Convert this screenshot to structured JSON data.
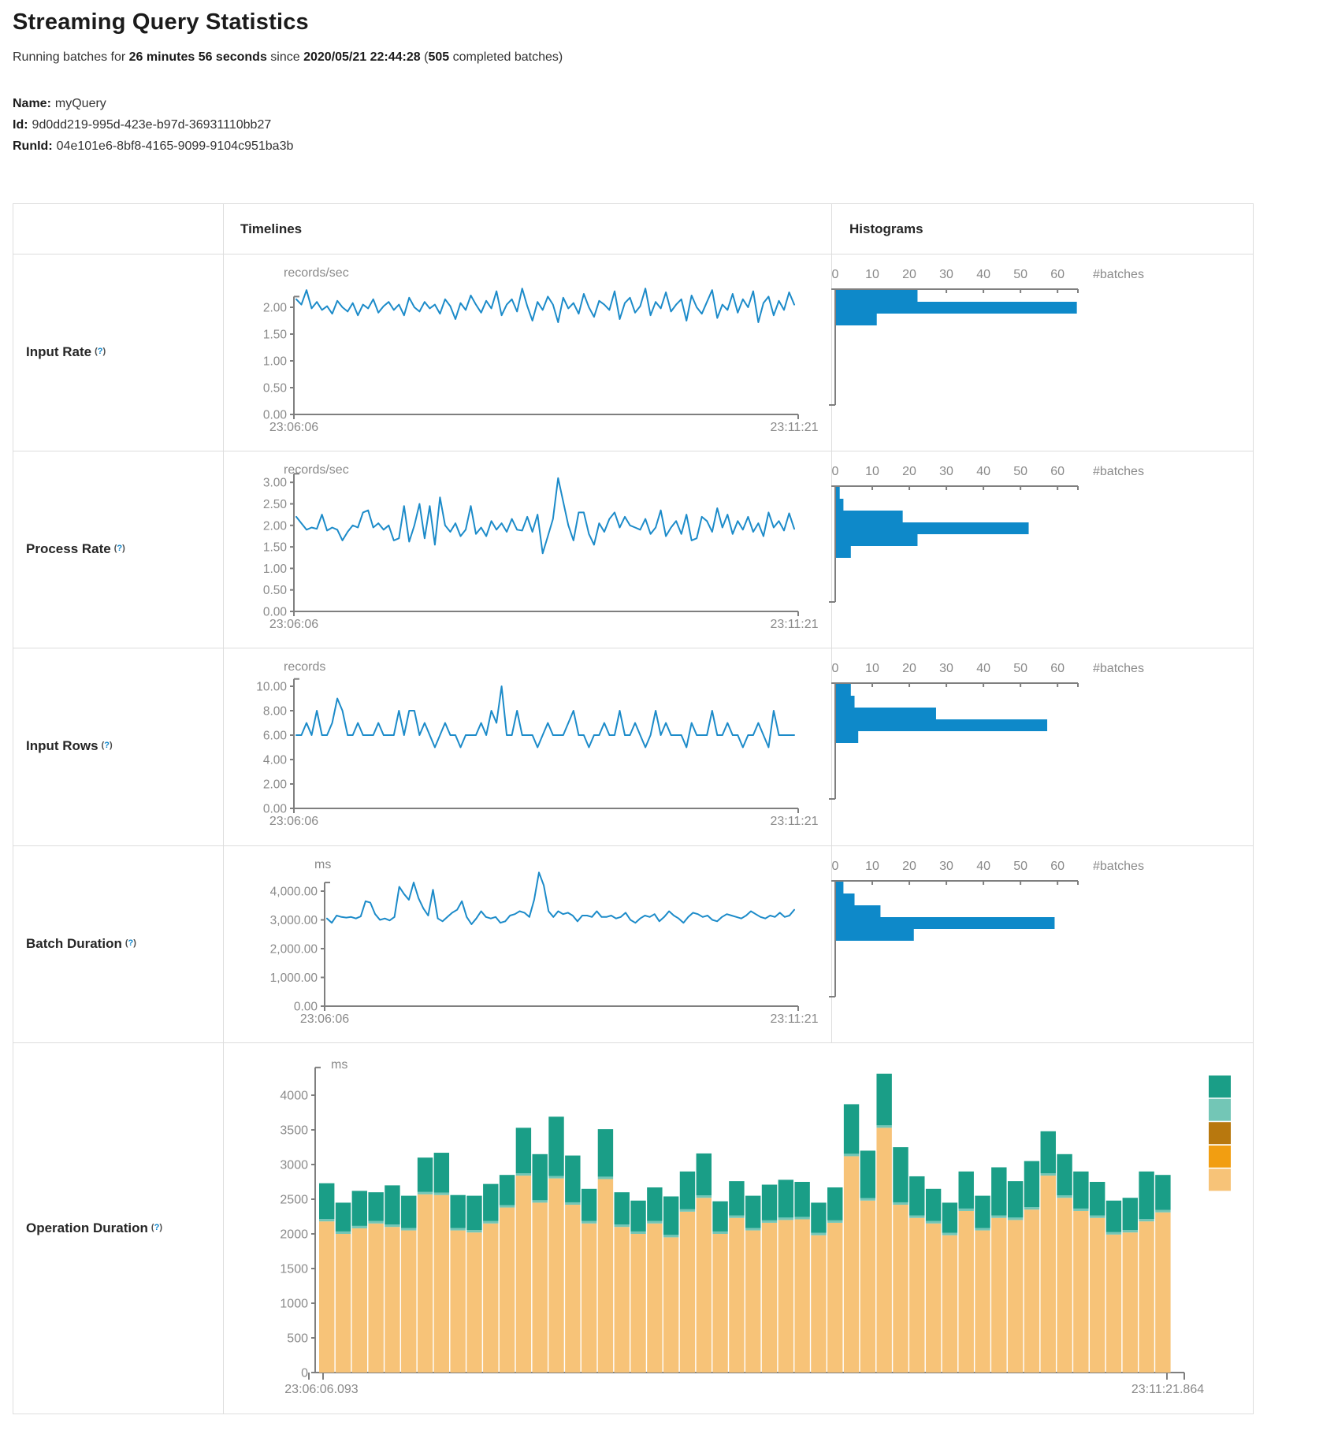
{
  "page": {
    "title": "Streaming Query Statistics",
    "subtitle": {
      "p1": "Running batches for ",
      "b1": "26 minutes 56 seconds",
      "p2": " since ",
      "b2": "2020/05/21 22:44:28",
      "p3": " (",
      "b3": "505",
      "p4": " completed batches)"
    },
    "meta": [
      {
        "label": "Name:",
        "value": "myQuery"
      },
      {
        "label": "Id:",
        "value": "9d0dd219-995d-423e-b97d-36931110bb27"
      },
      {
        "label": "RunId:",
        "value": "04e101e6-8bf8-4165-9099-9104c951ba3b"
      }
    ]
  },
  "table": {
    "headers": {
      "timelines": "Timelines",
      "histograms": "Histograms"
    },
    "help": {
      "open": "(",
      "mark": "?",
      "close": ")"
    },
    "row_labels": [
      {
        "label": "Input Rate"
      },
      {
        "label": "Process Rate"
      },
      {
        "label": "Input Rows"
      },
      {
        "label": "Batch Duration"
      },
      {
        "label": "Operation Duration"
      }
    ]
  },
  "chart_data": {
    "line_color": "#1c8bc9",
    "hist_color": "#0e89c9",
    "axis_color": "#7f7f7f",
    "tick_text_color": "#8a8a8a",
    "rows": [
      {
        "metric": "Input Rate",
        "timeline": {
          "type": "line",
          "unit": "records/sec",
          "x_start": "23:06:06",
          "x_end": "23:11:21",
          "ylim": [
            0,
            2.2
          ],
          "ytick_values": [
            2,
            1.5,
            1,
            0.5,
            0
          ],
          "ytick_labels": [
            "2.00",
            "1.50",
            "1.00",
            "0.50",
            "0.00"
          ],
          "values": [
            2.15,
            2.05,
            2.32,
            1.98,
            2.1,
            1.95,
            2.02,
            1.88,
            2.12,
            2.0,
            1.92,
            2.08,
            1.85,
            2.05,
            1.98,
            2.15,
            1.9,
            2.02,
            2.1,
            1.95,
            2.05,
            1.85,
            2.18,
            2.0,
            1.92,
            2.1,
            1.98,
            2.05,
            1.88,
            2.15,
            2.02,
            1.78,
            2.08,
            1.95,
            2.22,
            2.05,
            1.9,
            2.12,
            1.98,
            2.3,
            1.85,
            2.05,
            2.15,
            1.92,
            2.35,
            2.02,
            1.75,
            2.1,
            1.95,
            2.2,
            2.05,
            1.72,
            2.18,
            1.98,
            2.08,
            1.88,
            2.25,
            2.0,
            1.82,
            2.12,
            2.05,
            1.95,
            2.3,
            1.78,
            2.08,
            2.18,
            1.9,
            2.02,
            2.35,
            1.85,
            2.1,
            1.98,
            2.28,
            1.92,
            2.05,
            2.15,
            1.75,
            2.22,
            2.0,
            1.88,
            2.1,
            2.32,
            1.8,
            2.05,
            1.95,
            2.25,
            1.9,
            2.15,
            2.0,
            2.3,
            1.72,
            2.08,
            2.2,
            1.85,
            2.12,
            1.95,
            2.28,
            2.05
          ]
        },
        "histogram": {
          "type": "bar-horizontal",
          "xlabel": "#batches",
          "xticks": [
            0,
            10,
            20,
            30,
            40,
            50,
            60
          ],
          "xmax": 65.5,
          "values": [
            22,
            65,
            11
          ]
        }
      },
      {
        "metric": "Process Rate",
        "timeline": {
          "type": "line",
          "unit": "records/sec",
          "x_start": "23:06:06",
          "x_end": "23:11:21",
          "ylim": [
            0,
            3.2
          ],
          "ytick_values": [
            3,
            2.5,
            2,
            1.5,
            1,
            0.5,
            0
          ],
          "ytick_labels": [
            "3.00",
            "2.50",
            "2.00",
            "1.50",
            "1.00",
            "0.50",
            "0.00"
          ],
          "values": [
            2.2,
            2.05,
            1.9,
            1.95,
            1.92,
            2.25,
            1.88,
            1.95,
            1.9,
            1.65,
            1.85,
            2.0,
            1.95,
            2.3,
            2.35,
            1.95,
            2.05,
            1.9,
            2.0,
            1.65,
            1.7,
            2.45,
            1.62,
            2.0,
            2.5,
            1.7,
            2.45,
            1.55,
            2.65,
            2.0,
            1.85,
            2.05,
            1.75,
            1.9,
            2.45,
            1.8,
            1.95,
            1.75,
            2.1,
            1.9,
            2.05,
            1.85,
            2.15,
            1.9,
            1.88,
            2.2,
            1.85,
            2.25,
            1.35,
            1.75,
            2.15,
            3.1,
            2.55,
            2.0,
            1.65,
            2.3,
            2.3,
            1.8,
            1.55,
            2.05,
            1.85,
            2.15,
            2.3,
            1.95,
            2.2,
            2.0,
            1.95,
            1.9,
            2.15,
            1.8,
            1.95,
            2.35,
            1.75,
            1.95,
            2.1,
            1.8,
            2.25,
            1.65,
            1.7,
            2.2,
            2.1,
            1.85,
            2.4,
            1.95,
            2.25,
            1.8,
            2.1,
            1.9,
            2.2,
            1.85,
            2.05,
            1.75,
            2.3,
            1.95,
            2.1,
            1.88,
            2.28,
            1.92
          ]
        },
        "histogram": {
          "type": "bar-horizontal",
          "xlabel": "#batches",
          "xticks": [
            0,
            10,
            20,
            30,
            40,
            50,
            60
          ],
          "xmax": 65.5,
          "values": [
            1,
            2,
            18,
            52,
            22,
            4
          ]
        }
      },
      {
        "metric": "Input Rows",
        "timeline": {
          "type": "line",
          "unit": "records",
          "x_start": "23:06:06",
          "x_end": "23:11:21",
          "ylim": [
            0,
            10.6
          ],
          "ytick_values": [
            10,
            8,
            6,
            4,
            2,
            0
          ],
          "ytick_labels": [
            "10.00",
            "8.00",
            "6.00",
            "4.00",
            "2.00",
            "0.00"
          ],
          "values": [
            6,
            6,
            7,
            6,
            8,
            6,
            6,
            7,
            9,
            8,
            6,
            6,
            7,
            6,
            6,
            6,
            7,
            6,
            6,
            6,
            8,
            6,
            8,
            8,
            6,
            7,
            6,
            5,
            6,
            7,
            6,
            6,
            5,
            6,
            6,
            6,
            7,
            6,
            8,
            7,
            10,
            6,
            6,
            8,
            6,
            6,
            6,
            5,
            6,
            7,
            6,
            6,
            6,
            7,
            8,
            6,
            6,
            5,
            6,
            6,
            7,
            6,
            6,
            8,
            6,
            6,
            7,
            6,
            5,
            6,
            8,
            6,
            7,
            6,
            6,
            6,
            5,
            7,
            6,
            6,
            6,
            8,
            6,
            6,
            7,
            6,
            6,
            5,
            6,
            6,
            7,
            6,
            5,
            8,
            6,
            6,
            6,
            6
          ]
        },
        "histogram": {
          "type": "bar-horizontal",
          "xlabel": "#batches",
          "xticks": [
            0,
            10,
            20,
            30,
            40,
            50,
            60
          ],
          "xmax": 65.5,
          "values": [
            4,
            5,
            27,
            57,
            6
          ]
        }
      },
      {
        "metric": "Batch Duration",
        "timeline": {
          "type": "line",
          "unit": "ms",
          "x_start": "23:06:06",
          "x_end": "23:11:21",
          "ylim": [
            0,
            4300
          ],
          "ytick_values": [
            4000,
            3000,
            2000,
            1000,
            0
          ],
          "ytick_labels": [
            "4,000.00",
            "3,000.00",
            "2,000.00",
            "1,000.00",
            "0.00"
          ],
          "values": [
            3050,
            2900,
            3150,
            3100,
            3080,
            3100,
            3050,
            3120,
            3650,
            3600,
            3200,
            3000,
            3050,
            2980,
            3100,
            4150,
            3900,
            3700,
            4300,
            3750,
            3400,
            3150,
            4050,
            3050,
            2950,
            3100,
            3250,
            3350,
            3650,
            3100,
            2850,
            3050,
            3300,
            3100,
            3050,
            3100,
            2900,
            2950,
            3150,
            3200,
            3300,
            3250,
            3100,
            3700,
            4650,
            4200,
            3300,
            3100,
            3300,
            3200,
            3250,
            3150,
            2950,
            3150,
            3150,
            3100,
            3300,
            3100,
            3100,
            3150,
            3050,
            3100,
            3250,
            3000,
            2900,
            3050,
            3150,
            3100,
            3200,
            2950,
            3100,
            3300,
            3150,
            3050,
            2900,
            3100,
            3250,
            3200,
            3100,
            3150,
            3000,
            2950,
            3100,
            3200,
            3150,
            3100,
            3050,
            3150,
            3300,
            3200,
            3100,
            3050,
            3150,
            3100,
            3250,
            3100,
            3150,
            3350
          ]
        },
        "histogram": {
          "type": "bar-horizontal",
          "xlabel": "#batches",
          "xticks": [
            0,
            10,
            20,
            30,
            40,
            50,
            60
          ],
          "xmax": 65.5,
          "values": [
            2,
            5,
            12,
            59,
            21
          ]
        }
      }
    ],
    "operation_duration": {
      "metric": "Operation Duration",
      "type": "stacked-bar",
      "unit": "ms",
      "x_start": "23:06:06.093",
      "x_end": "23:11:21.864",
      "ylim": [
        0,
        4400
      ],
      "ytick_values": [
        4000,
        3500,
        3000,
        2500,
        2000,
        1500,
        1000,
        500,
        0
      ],
      "ytick_labels": [
        "4000",
        "3500",
        "3000",
        "2500",
        "2000",
        "1500",
        "1000",
        "500",
        "0"
      ],
      "legend_colors": [
        "#1a9e87",
        "#73c6b6",
        "#b8780e",
        "#f29e11",
        "#f7c378"
      ],
      "stack": [
        {
          "name": "bottom-segment",
          "color": "#f7c378",
          "values": [
            2180,
            2000,
            2080,
            2150,
            2100,
            2050,
            2570,
            2560,
            2050,
            2020,
            2150,
            2380,
            2840,
            2450,
            2800,
            2420,
            2150,
            2790,
            2100,
            2000,
            2150,
            1950,
            2320,
            2520,
            2000,
            2230,
            2050,
            2160,
            2200,
            2210,
            1980,
            2160,
            3120,
            2480,
            3530,
            2420,
            2230,
            2150,
            1980,
            2330,
            2050,
            2230,
            2200,
            2350,
            2840,
            2520,
            2330,
            2230,
            1990,
            2020,
            2180,
            2310
          ]
        },
        {
          "name": "middle-segment",
          "color": "#73c6b6",
          "values": [
            35,
            35,
            35,
            35,
            35,
            35,
            35,
            35,
            35,
            35,
            35,
            35,
            35,
            35,
            35,
            35,
            35,
            35,
            35,
            35,
            35,
            35,
            35,
            35,
            35,
            35,
            35,
            35,
            35,
            35,
            35,
            35,
            35,
            35,
            35,
            35,
            35,
            35,
            35,
            35,
            35,
            35,
            35,
            35,
            35,
            35,
            35,
            35,
            35,
            35,
            35,
            35
          ]
        },
        {
          "name": "top-segment",
          "color": "#1a9e87",
          "values": [
            515,
            415,
            505,
            415,
            565,
            465,
            495,
            575,
            475,
            495,
            535,
            435,
            655,
            665,
            855,
            675,
            465,
            685,
            465,
            445,
            485,
            555,
            545,
            605,
            435,
            495,
            465,
            515,
            545,
            505,
            435,
            475,
            715,
            685,
            745,
            795,
            565,
            465,
            435,
            535,
            465,
            695,
            525,
            665,
            605,
            595,
            535,
            485,
            455,
            465,
            685,
            505
          ]
        }
      ]
    }
  }
}
